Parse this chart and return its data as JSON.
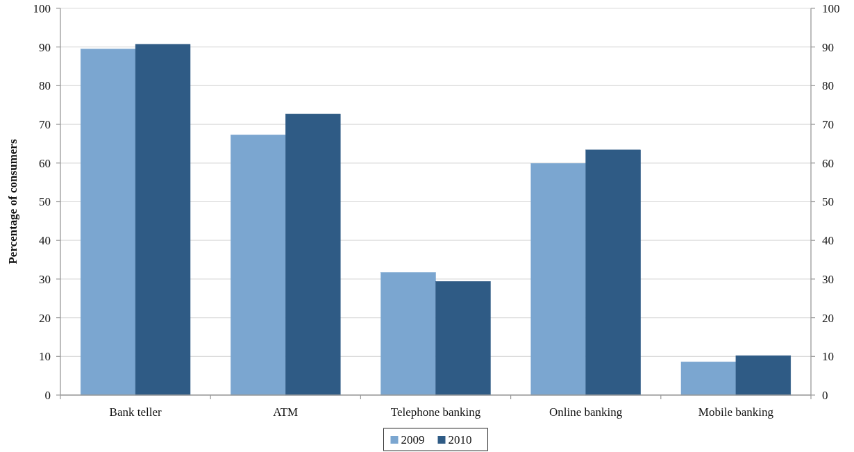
{
  "chart_data": {
    "type": "bar",
    "ylabel": "Percentage of consumers",
    "categories": [
      "Bank teller",
      "ATM",
      "Telephone banking",
      "Online banking",
      "Mobile banking"
    ],
    "series": [
      {
        "name": "2009",
        "color": "#7ba6d0",
        "values": [
          89.5,
          67.3,
          31.7,
          59.9,
          8.6
        ]
      },
      {
        "name": "2010",
        "color": "#2f5b85",
        "values": [
          90.7,
          72.7,
          29.4,
          63.4,
          10.2
        ]
      }
    ],
    "ylim": [
      0,
      100
    ],
    "yticks": [
      0,
      10,
      20,
      30,
      40,
      50,
      60,
      70,
      80,
      90,
      100
    ],
    "y2lim": [
      0,
      100
    ],
    "y2ticks": [
      0,
      10,
      20,
      30,
      40,
      50,
      60,
      70,
      80,
      90,
      100
    ],
    "grid": "y",
    "legend": "bottom"
  }
}
